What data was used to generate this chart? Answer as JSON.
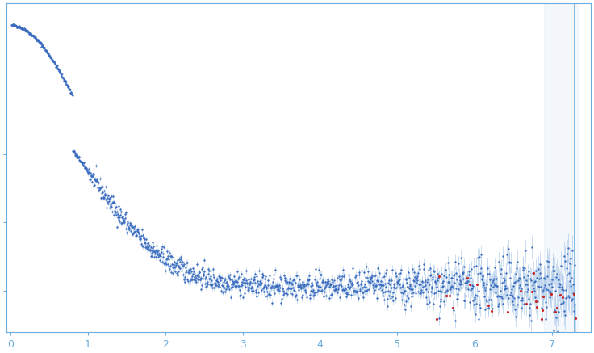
{
  "title": "",
  "xlabel": "",
  "ylabel": "",
  "xlim": [
    -0.05,
    7.5
  ],
  "ylim": [
    -0.15,
    1.05
  ],
  "background_color": "#ffffff",
  "point_color_blue": "#3a6bbf",
  "point_color_red": "#cc2222",
  "error_color": "#aac8e8",
  "axis_color": "#6aaddc",
  "tick_color": "#6aaddc",
  "q_min": 0.012,
  "q_max": 7.3,
  "n_points": 1400,
  "seed": 42
}
